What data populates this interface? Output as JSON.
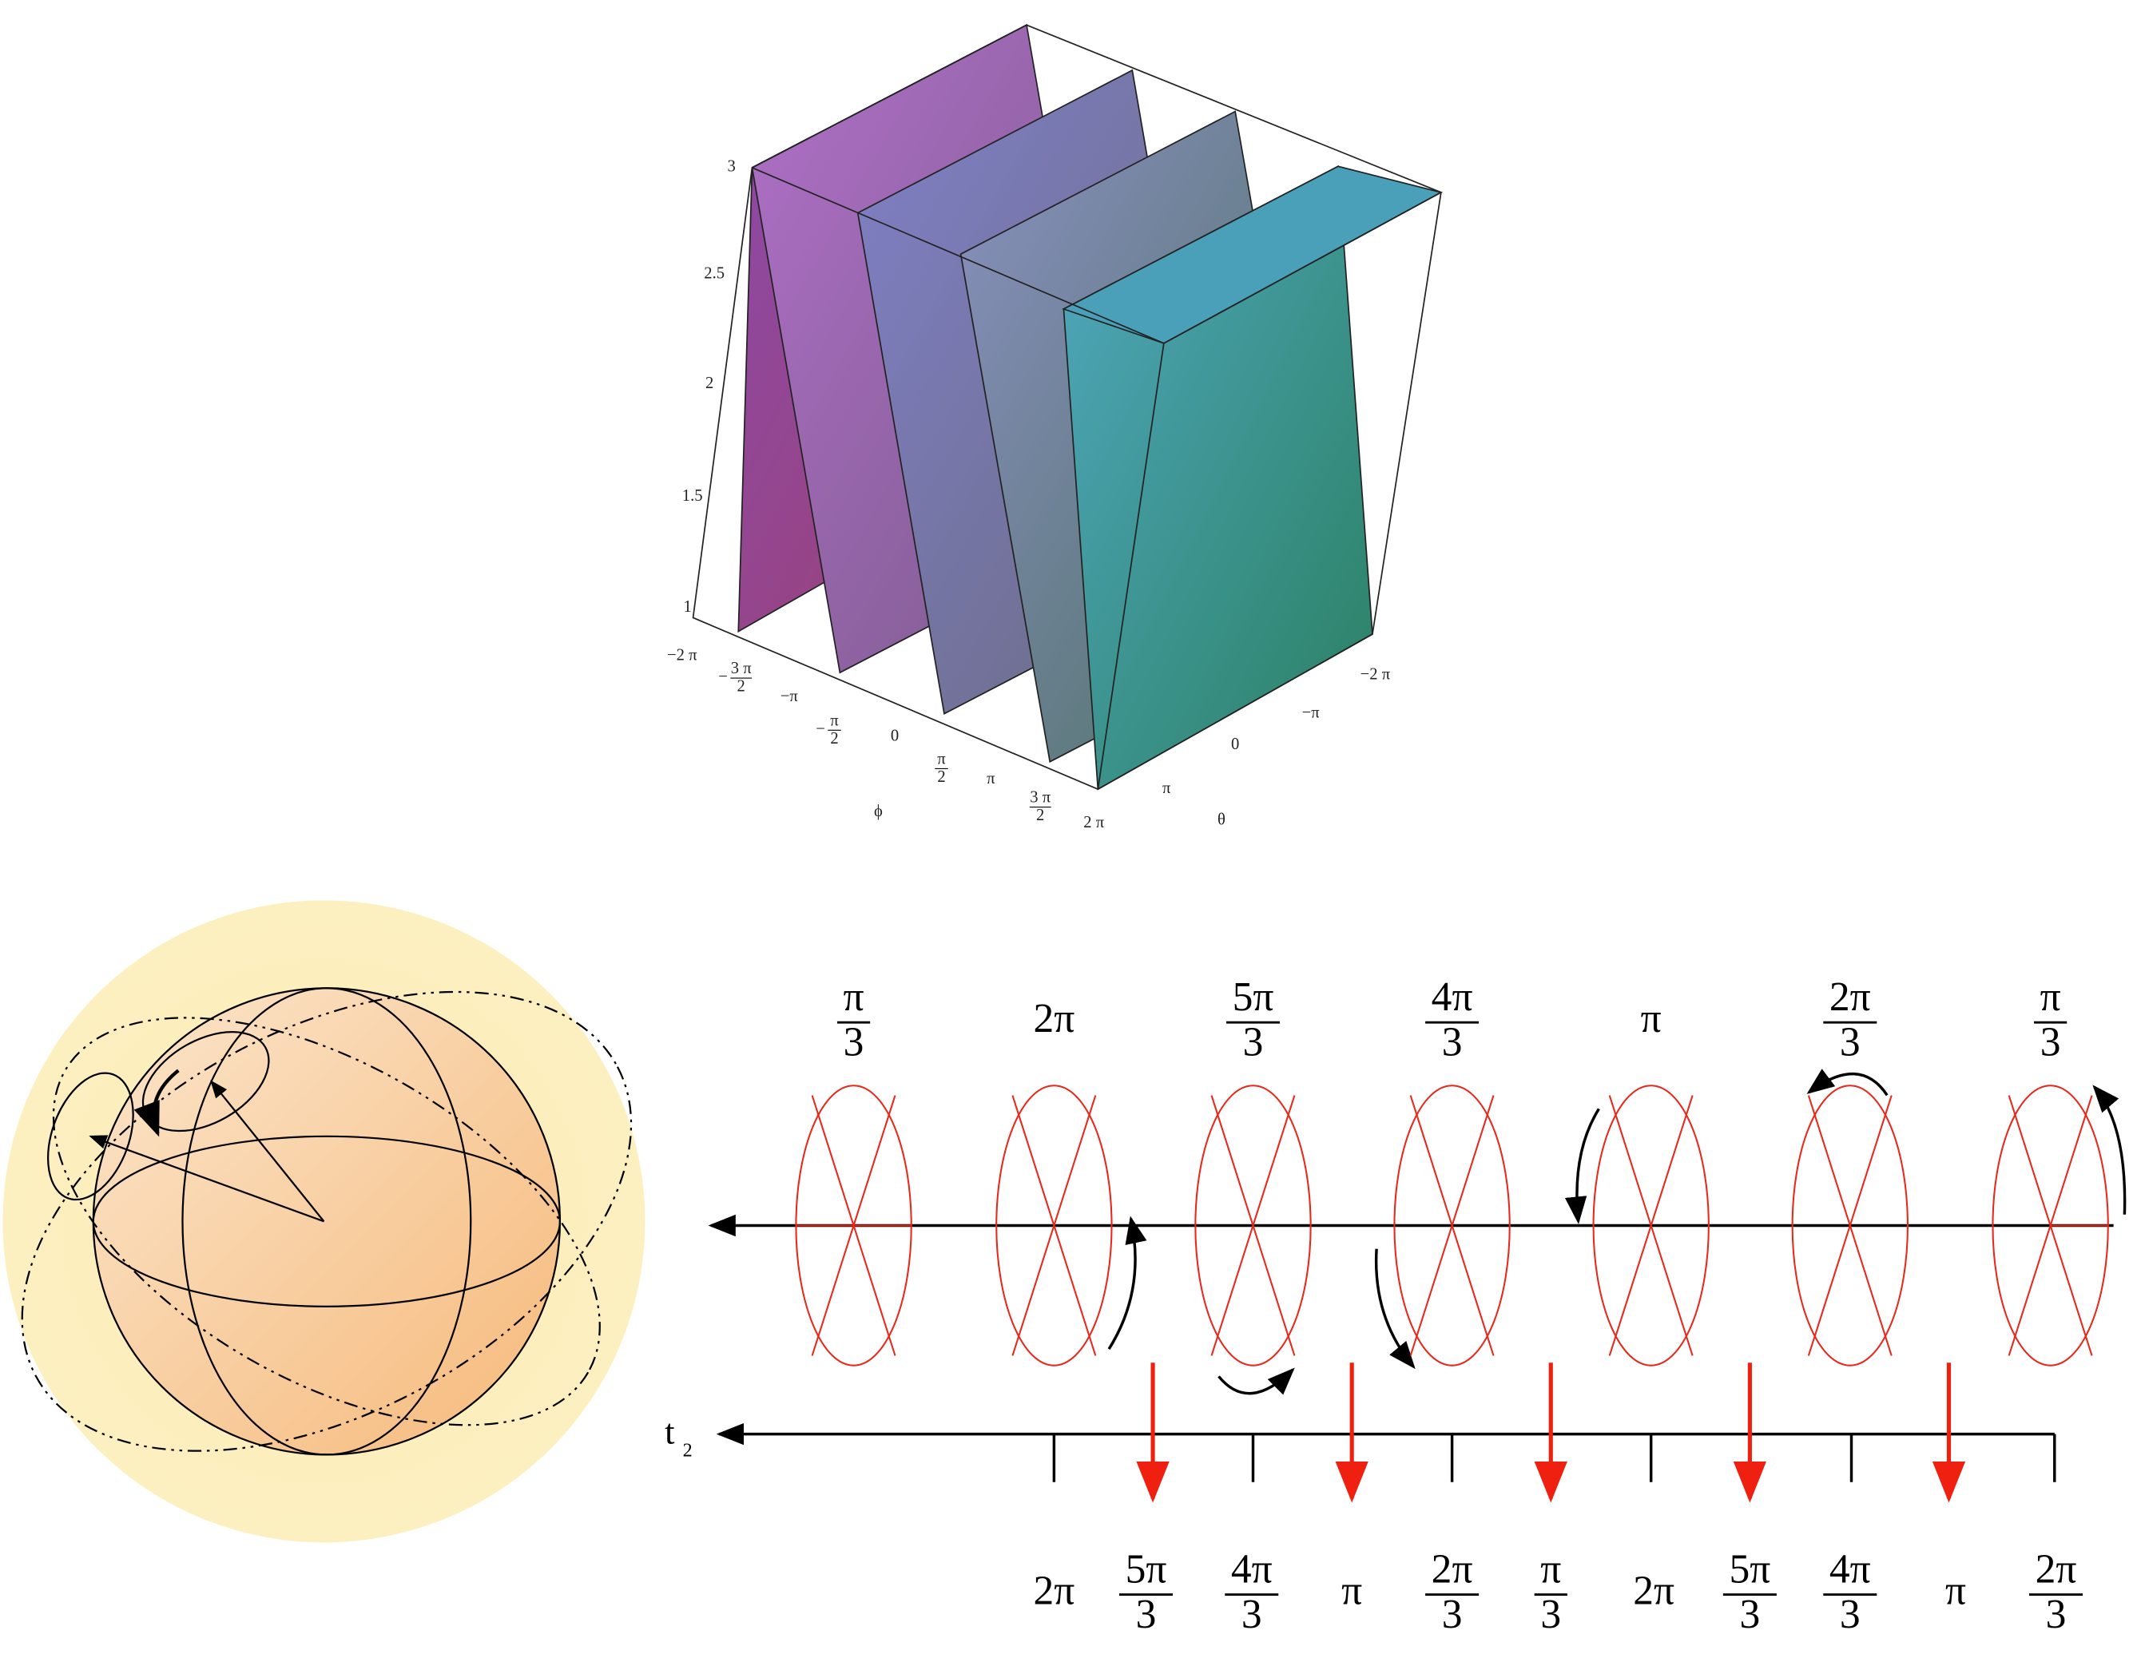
{
  "surface_plot": {
    "z_ticks": [
      "3",
      "2.5",
      "2",
      "1.5",
      "1"
    ],
    "phi_ticks": [
      "−2 π",
      {
        "sign": "−",
        "num": "3 π",
        "den": "2"
      },
      "−π",
      {
        "sign": "−",
        "num": "π",
        "den": "2"
      },
      "0",
      {
        "num": "π",
        "den": "2"
      },
      "π",
      {
        "num": "3 π",
        "den": "2"
      },
      "2 π"
    ],
    "phi_label": "ϕ",
    "theta_ticks": [
      "−2 π",
      "−π",
      "0",
      "π"
    ],
    "theta_label": "θ"
  },
  "phase_diagram": {
    "top_labels": [
      {
        "num": "π",
        "den": "3"
      },
      "2π",
      {
        "num": "5π",
        "den": "3"
      },
      {
        "num": "4π",
        "den": "3"
      },
      "π",
      {
        "num": "2π",
        "den": "3"
      },
      {
        "num": "π",
        "den": "3"
      }
    ],
    "time_axis_label": {
      "base": "t",
      "sub": "2"
    },
    "bottom_labels": [
      "2π",
      {
        "num": "5π",
        "den": "3"
      },
      {
        "num": "4π",
        "den": "3"
      },
      "π",
      {
        "num": "2π",
        "den": "3"
      },
      {
        "num": "π",
        "den": "3"
      },
      "2π",
      {
        "num": "5π",
        "den": "3"
      },
      {
        "num": "4π",
        "den": "3"
      },
      "π",
      {
        "num": "2π",
        "den": "3"
      }
    ]
  }
}
